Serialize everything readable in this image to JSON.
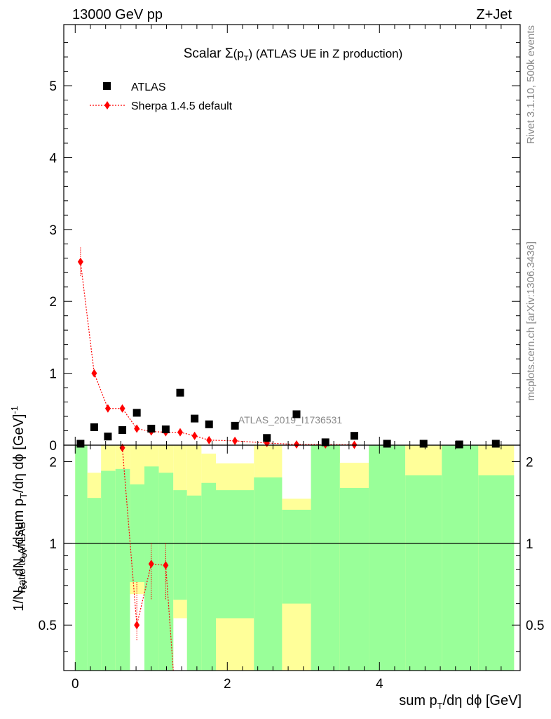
{
  "header": {
    "left": "13000 GeV pp",
    "right": "Z+Jet"
  },
  "side": {
    "rivet": "Rivet 3.1.10,  500k events",
    "mcplots": "mcplots.cern.ch [arXiv:1306.3436]"
  },
  "watermark": "ATLAS_2019_I1736531",
  "colors": {
    "band_inner": "#99ff99",
    "band_outer": "#ffff99",
    "mc": "#ff0000",
    "data": "#000000"
  },
  "chart_data": {
    "type": "scatter",
    "title": "Scalar Σ(p_T) (ATLAS UE in Z production)",
    "title_parts": {
      "pre": "Scalar ",
      "sigma": "Σ",
      "paren_open": "(p",
      "sub": "T",
      "paren_close": ")",
      "post": " (ATLAS UE in Z production)"
    },
    "xlabel": "sum p_T/dη dϕ [GeV]",
    "xlabel_parts": {
      "pre": "sum p",
      "sub": "T",
      "post": "/dη dϕ [GeV]"
    },
    "ylabel": "1/N_ev dN_ev/dsum p_T/dη dϕ [GeV]^-1",
    "ylabel_parts": {
      "a": "1/N",
      "b": "ev",
      "c": " dN",
      "d": "ev",
      "e": "/dsum p",
      "f": "T",
      "g": "/dη dϕ  [GeV]",
      "h": "-1"
    },
    "ratio_ylabel": "Ratio to ATLAS",
    "xlim": [
      -0.15,
      5.85
    ],
    "ylim": [
      0,
      5.85
    ],
    "ratio_ylim": [
      0.34,
      2.3
    ],
    "x_ticks": [
      0,
      2,
      4
    ],
    "x_tick_labels": [
      "0",
      "2",
      "4"
    ],
    "y_ticks": [
      0,
      1,
      2,
      3,
      4,
      5
    ],
    "y_tick_labels": [
      "0",
      "1",
      "2",
      "3",
      "4",
      "5"
    ],
    "ratio_ticks": [
      0.5,
      1,
      2
    ],
    "ratio_tick_labels": [
      "0.5",
      "1",
      "2"
    ],
    "legend": {
      "position": "top-left",
      "data_label": "ATLAS",
      "mc_label": "Sherpa 1.4.5 default"
    },
    "series": [
      {
        "name": "ATLAS",
        "x": [
          0.07,
          0.25,
          0.43,
          0.62,
          0.81,
          1.0,
          1.19,
          1.38,
          1.57,
          1.76,
          2.1,
          2.52,
          2.91,
          3.29,
          3.67,
          4.1,
          4.58,
          5.05,
          5.53
        ],
        "y": [
          0.02,
          0.25,
          0.12,
          0.21,
          0.45,
          0.23,
          0.22,
          0.73,
          0.37,
          0.29,
          0.27,
          0.1,
          0.43,
          0.04,
          0.13,
          0.02,
          0.02,
          0.01,
          0.02
        ]
      },
      {
        "name": "Sherpa 1.4.5 default",
        "x": [
          0.07,
          0.25,
          0.43,
          0.62,
          0.81,
          1.0,
          1.19,
          1.38,
          1.57,
          1.76,
          2.1,
          2.52,
          2.91,
          3.29,
          3.67
        ],
        "y": [
          2.55,
          1.0,
          0.51,
          0.51,
          0.23,
          0.19,
          0.18,
          0.18,
          0.13,
          0.07,
          0.06,
          0.03,
          0.01,
          0.01,
          0.005
        ],
        "yerr": [
          0.2,
          0.05,
          0.05,
          0.05,
          0.03,
          0.03,
          0.03,
          0.03,
          0.02,
          0.02,
          0.02,
          0.01,
          0.01,
          0.01,
          0.01
        ]
      }
    ],
    "ratio_points": {
      "x": [
        0.62,
        0.81,
        1.0,
        1.19
      ],
      "y": [
        2.25,
        0.5,
        0.84,
        0.83
      ],
      "ylo": [
        2.25,
        0.44,
        0.62,
        0.62
      ],
      "yhi": [
        2.3,
        0.72,
        1.0,
        1.0
      ]
    },
    "ratio_bands": [
      {
        "x0": 0.0,
        "x1": 0.16,
        "g_lo": 0.34,
        "g_hi": 2.3,
        "y_lo": 0.34,
        "y_hi": 2.3
      },
      {
        "x0": 0.16,
        "x1": 0.34,
        "g_lo": 0.34,
        "g_hi": 1.47,
        "y_lo": 0.64,
        "y_hi": 1.82
      },
      {
        "x0": 0.34,
        "x1": 0.53,
        "g_lo": 0.34,
        "g_hi": 1.85,
        "y_lo": 0.34,
        "y_hi": 2.3
      },
      {
        "x0": 0.53,
        "x1": 0.72,
        "g_lo": 0.34,
        "g_hi": 1.88,
        "y_lo": 0.34,
        "y_hi": 2.3
      },
      {
        "x0": 0.72,
        "x1": 0.91,
        "g_lo": 0.72,
        "g_hi": 1.65,
        "y_lo": 0.65,
        "y_hi": 2.3
      },
      {
        "x0": 0.91,
        "x1": 1.1,
        "g_lo": 0.34,
        "g_hi": 1.92,
        "y_lo": 0.34,
        "y_hi": 2.3
      },
      {
        "x0": 1.1,
        "x1": 1.29,
        "g_lo": 0.34,
        "g_hi": 1.82,
        "y_lo": 0.34,
        "y_hi": 2.3
      },
      {
        "x0": 1.29,
        "x1": 1.47,
        "g_lo": 0.62,
        "g_hi": 1.57,
        "y_lo": 0.53,
        "y_hi": 2.3
      },
      {
        "x0": 1.47,
        "x1": 1.66,
        "g_lo": 0.34,
        "g_hi": 1.5,
        "y_lo": 0.34,
        "y_hi": 2.3
      },
      {
        "x0": 1.66,
        "x1": 1.85,
        "g_lo": 0.34,
        "g_hi": 1.67,
        "y_lo": 0.34,
        "y_hi": 2.14
      },
      {
        "x0": 1.85,
        "x1": 2.35,
        "g_lo": 0.53,
        "g_hi": 1.57,
        "y_lo": 0.34,
        "y_hi": 1.97
      },
      {
        "x0": 2.35,
        "x1": 2.72,
        "g_lo": 0.34,
        "g_hi": 1.75,
        "y_lo": 0.34,
        "y_hi": 2.3
      },
      {
        "x0": 2.72,
        "x1": 3.1,
        "g_lo": 0.6,
        "g_hi": 1.33,
        "y_lo": 0.34,
        "y_hi": 1.46
      },
      {
        "x0": 3.1,
        "x1": 3.48,
        "g_lo": 0.34,
        "g_hi": 2.3,
        "y_lo": 0.34,
        "y_hi": 2.3
      },
      {
        "x0": 3.48,
        "x1": 3.86,
        "g_lo": 0.34,
        "g_hi": 1.6,
        "y_lo": 0.34,
        "y_hi": 1.98
      },
      {
        "x0": 3.86,
        "x1": 4.34,
        "g_lo": 0.34,
        "g_hi": 2.3,
        "y_lo": 0.34,
        "y_hi": 2.3
      },
      {
        "x0": 4.34,
        "x1": 4.82,
        "g_lo": 0.34,
        "g_hi": 1.78,
        "y_lo": 0.34,
        "y_hi": 2.3
      },
      {
        "x0": 4.82,
        "x1": 5.3,
        "g_lo": 0.34,
        "g_hi": 2.3,
        "y_lo": 0.34,
        "y_hi": 2.3
      },
      {
        "x0": 5.3,
        "x1": 5.77,
        "g_lo": 0.34,
        "g_hi": 1.78,
        "y_lo": 0.34,
        "y_hi": 2.3
      }
    ]
  }
}
